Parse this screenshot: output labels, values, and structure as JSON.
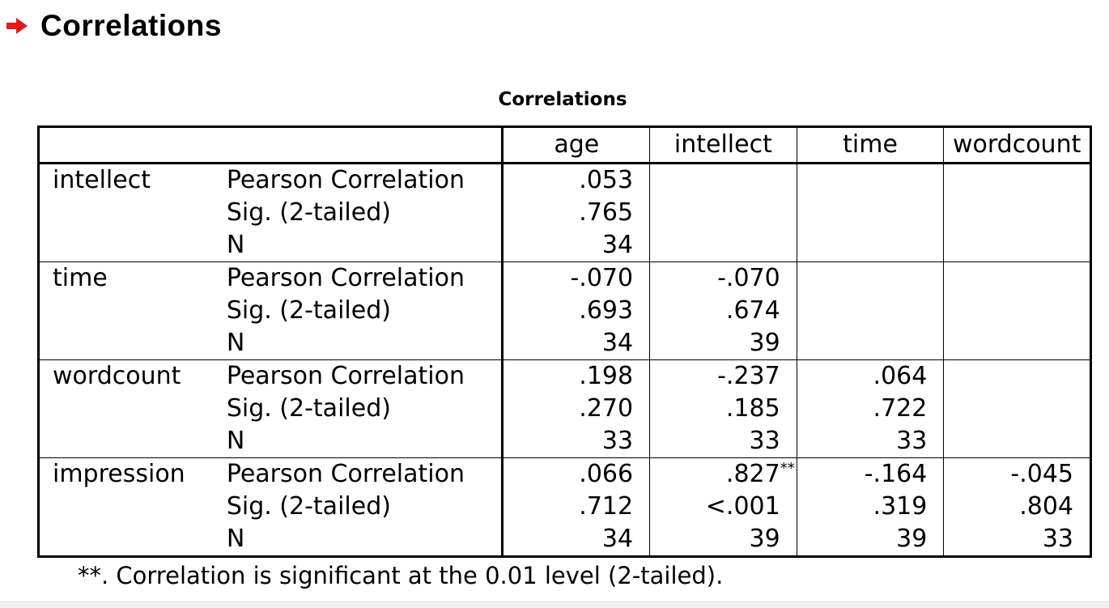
{
  "output": {
    "heading": "Correlations",
    "heading_icon": "red-arrow-icon",
    "heading_icon_color": "#e8171b"
  },
  "table": {
    "caption": "Correlations",
    "columns": [
      "age",
      "intellect",
      "time",
      "wordcount"
    ],
    "rows": [
      {
        "variable": "intellect",
        "stats": [
          {
            "label": "Pearson Correlation",
            "values": [
              ".053",
              "",
              "",
              ""
            ]
          },
          {
            "label": "Sig. (2-tailed)",
            "values": [
              ".765",
              "",
              "",
              ""
            ]
          },
          {
            "label": "N",
            "values": [
              "34",
              "",
              "",
              ""
            ]
          }
        ]
      },
      {
        "variable": "time",
        "stats": [
          {
            "label": "Pearson Correlation",
            "values": [
              "-.070",
              "-.070",
              "",
              ""
            ]
          },
          {
            "label": "Sig. (2-tailed)",
            "values": [
              ".693",
              ".674",
              "",
              ""
            ]
          },
          {
            "label": "N",
            "values": [
              "34",
              "39",
              "",
              ""
            ]
          }
        ]
      },
      {
        "variable": "wordcount",
        "stats": [
          {
            "label": "Pearson Correlation",
            "values": [
              ".198",
              "-.237",
              ".064",
              ""
            ]
          },
          {
            "label": "Sig. (2-tailed)",
            "values": [
              ".270",
              ".185",
              ".722",
              ""
            ]
          },
          {
            "label": "N",
            "values": [
              "33",
              "33",
              "33",
              ""
            ]
          }
        ]
      },
      {
        "variable": "impression",
        "stats": [
          {
            "label": "Pearson Correlation",
            "values": [
              ".066",
              ".827",
              "-.164",
              "-.045"
            ],
            "marks": [
              "",
              "**",
              "",
              ""
            ]
          },
          {
            "label": "Sig. (2-tailed)",
            "values": [
              ".712",
              "<.001",
              ".319",
              ".804"
            ]
          },
          {
            "label": "N",
            "values": [
              "34",
              "39",
              "39",
              "33"
            ]
          }
        ]
      }
    ],
    "footnote": "**. Correlation is significant at the 0.01 level (2-tailed)."
  }
}
